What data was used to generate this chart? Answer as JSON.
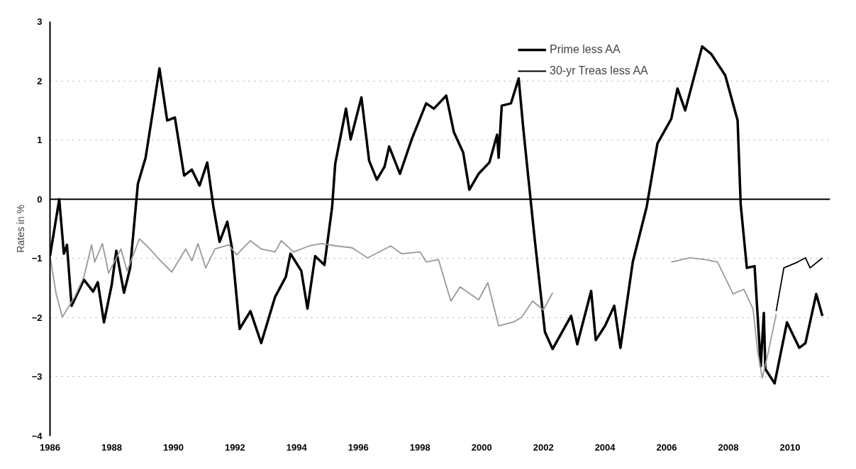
{
  "chart_data": {
    "type": "line",
    "ylabel": "Rates in %",
    "xlim": [
      1986,
      2011.3
    ],
    "ylim": [
      -4,
      3
    ],
    "xticks": [
      1986,
      1988,
      1990,
      1992,
      1994,
      1996,
      1998,
      2000,
      2002,
      2004,
      2006,
      2008,
      2010
    ],
    "yticks": [
      -4,
      -3,
      -2,
      -1,
      0,
      1,
      2,
      3
    ],
    "grid": "y",
    "legend": "top right",
    "ref_lines": [
      {
        "axis": "y",
        "value": 0,
        "label": null,
        "color": "#000000"
      }
    ],
    "series": [
      {
        "name": "Prime less AA",
        "color": "#000000",
        "x": [
          1986.0,
          1986.3,
          1986.45,
          1986.55,
          1986.7,
          1987.1,
          1987.4,
          1987.55,
          1987.75,
          1988.0,
          1988.15,
          1988.4,
          1988.6,
          1988.85,
          1989.1,
          1989.35,
          1989.55,
          1989.8,
          1990.05,
          1990.35,
          1990.6,
          1990.85,
          1991.1,
          1991.3,
          1991.5,
          1991.75,
          1991.9,
          1992.15,
          1992.5,
          1992.85,
          1993.3,
          1993.65,
          1993.8,
          1994.15,
          1994.35,
          1994.6,
          1994.9,
          1995.15,
          1995.25,
          1995.6,
          1995.75,
          1996.1,
          1996.35,
          1996.6,
          1996.85,
          1997.0,
          1997.35,
          1997.75,
          1998.2,
          1998.45,
          1998.85,
          1999.1,
          1999.4,
          1999.6,
          1999.9,
          2000.25,
          2000.5,
          2000.55,
          2000.65,
          2000.95,
          2001.2,
          2001.35,
          2001.7,
          2002.05,
          2002.3,
          2002.9,
          2003.1,
          2003.55,
          2003.7,
          2004.0,
          2004.3,
          2004.5,
          2004.9,
          2005.35,
          2005.7,
          2006.15,
          2006.35,
          2006.6,
          2007.15,
          2007.45,
          2007.9,
          2008.3,
          2008.4,
          2008.6,
          2008.85,
          2009.05,
          2009.15,
          2009.2,
          2009.5,
          2009.9,
          2010.3,
          2010.5,
          2010.85,
          2011.05
        ],
        "values": [
          -0.96,
          0.0,
          -0.92,
          -0.77,
          -1.8,
          -1.36,
          -1.56,
          -1.4,
          -2.08,
          -1.45,
          -0.87,
          -1.58,
          -1.16,
          0.26,
          0.7,
          1.53,
          2.21,
          1.33,
          1.38,
          0.4,
          0.5,
          0.23,
          0.62,
          -0.13,
          -0.72,
          -0.38,
          -0.82,
          -2.19,
          -1.89,
          -2.43,
          -1.65,
          -1.31,
          -0.92,
          -1.21,
          -1.85,
          -0.96,
          -1.11,
          -0.13,
          0.6,
          1.53,
          1.01,
          1.72,
          0.65,
          0.33,
          0.55,
          0.89,
          0.43,
          1.04,
          1.62,
          1.53,
          1.75,
          1.13,
          0.79,
          0.16,
          0.43,
          0.62,
          1.09,
          0.7,
          1.58,
          1.62,
          2.04,
          1.19,
          -0.58,
          -2.24,
          -2.53,
          -1.97,
          -2.45,
          -1.55,
          -2.38,
          -2.14,
          -1.8,
          -2.51,
          -1.06,
          -0.13,
          0.94,
          1.36,
          1.87,
          1.5,
          2.58,
          2.45,
          2.09,
          1.33,
          -0.09,
          -1.16,
          -1.13,
          -2.82,
          -1.92,
          -2.87,
          -3.11,
          -2.08,
          -2.51,
          -2.43,
          -1.6,
          -1.97
        ]
      },
      {
        "name": "30-yr Treas less AA",
        "color": "#000000",
        "x": [
          2009.55,
          2009.8,
          2010.25,
          2010.5,
          2010.65,
          2011.05
        ],
        "values": [
          -1.89,
          -1.16,
          -1.06,
          -0.99,
          -1.16,
          -0.99
        ]
      },
      {
        "color": "#999999",
        "x": [
          1986.0,
          1986.2,
          1986.4,
          1986.8,
          1987.1,
          1987.35,
          1987.45,
          1987.7,
          1987.9,
          1988.3,
          1988.5,
          1988.9,
          1989.2,
          1989.55,
          1989.95,
          1990.4,
          1990.6,
          1990.8,
          1991.05,
          1991.35,
          1991.8,
          1992.05,
          1992.5,
          1992.85,
          1993.3,
          1993.5,
          1993.9,
          1994.4,
          1994.8,
          1995.3,
          1995.8,
          1996.3,
          1997.05,
          1997.4,
          1998.0,
          1998.2,
          1998.6,
          1999.0,
          1999.3,
          1999.9,
          2000.2,
          2000.55,
          2001.05,
          2001.3,
          2001.65,
          2002.0,
          2002.3,
          null,
          2006.15,
          2006.75,
          2007.25,
          2007.65,
          2008.15,
          2008.5,
          2008.8,
          2008.95,
          2009.1,
          2009.3,
          2009.55
        ],
        "values": [
          -0.96,
          -1.6,
          -1.99,
          -1.65,
          -1.31,
          -0.77,
          -1.06,
          -0.75,
          -1.25,
          -0.84,
          -1.21,
          -0.67,
          -0.82,
          -1.02,
          -1.23,
          -0.84,
          -1.04,
          -0.75,
          -1.16,
          -0.84,
          -0.77,
          -0.94,
          -0.7,
          -0.84,
          -0.89,
          -0.7,
          -0.89,
          -0.79,
          -0.75,
          -0.79,
          -0.82,
          -0.99,
          -0.79,
          -0.92,
          -0.89,
          -1.06,
          -1.02,
          -1.72,
          -1.48,
          -1.7,
          -1.41,
          -2.14,
          -2.07,
          -1.99,
          -1.72,
          -1.87,
          -1.58,
          null,
          -1.06,
          -0.99,
          -1.02,
          -1.06,
          -1.6,
          -1.52,
          -1.85,
          -2.57,
          -3.02,
          -2.57,
          -1.94
        ]
      }
    ]
  }
}
